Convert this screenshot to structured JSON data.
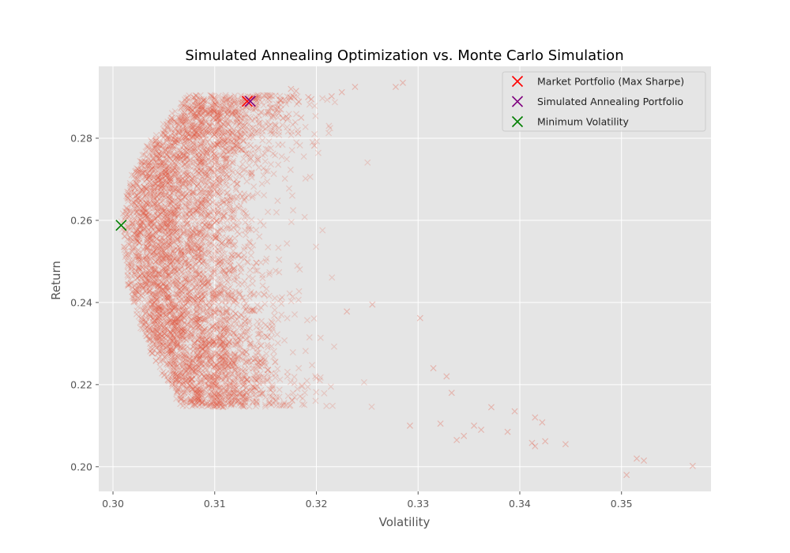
{
  "chart_data": {
    "type": "scatter",
    "title": "Simulated Annealing Optimization vs. Monte Carlo Simulation",
    "xlabel": "Volatility",
    "ylabel": "Return",
    "xlim": [
      0.2986,
      0.3588
    ],
    "ylim": [
      0.194,
      0.2975
    ],
    "xticks": [
      "0.30",
      "0.31",
      "0.32",
      "0.33",
      "0.34",
      "0.35"
    ],
    "yticks": [
      "0.20",
      "0.22",
      "0.24",
      "0.26",
      "0.28"
    ],
    "grid": true,
    "legend_position": "top-right",
    "colors": {
      "background": "#E5E5E5",
      "grid": "#FFFFFF",
      "simulation": "#E24A33",
      "market": "#FF0000",
      "annealing": "#800080",
      "min_vol": "#008000"
    },
    "special_points": [
      {
        "name": "Market Portfolio (Max Sharpe)",
        "x": 0.3132,
        "y": 0.289,
        "color": "#FF0000"
      },
      {
        "name": "Simulated Annealing Portfolio",
        "x": 0.3135,
        "y": 0.289,
        "color": "#800080"
      },
      {
        "name": "Minimum Volatility",
        "x": 0.3008,
        "y": 0.2588,
        "color": "#008000"
      }
    ],
    "simulation": {
      "frontier_min_volatility": 0.3008,
      "frontier_center_return": 0.2588,
      "outliers": [
        [
          0.357,
          0.2002
        ],
        [
          0.3522,
          0.2015
        ],
        [
          0.3515,
          0.202
        ],
        [
          0.3505,
          0.198
        ],
        [
          0.3445,
          0.2055
        ],
        [
          0.3425,
          0.2062
        ],
        [
          0.3415,
          0.205
        ],
        [
          0.3412,
          0.2058
        ],
        [
          0.3422,
          0.2108
        ],
        [
          0.3415,
          0.212
        ],
        [
          0.3395,
          0.2135
        ],
        [
          0.3388,
          0.2085
        ],
        [
          0.3372,
          0.2145
        ],
        [
          0.3362,
          0.209
        ],
        [
          0.3355,
          0.21
        ],
        [
          0.3345,
          0.2075
        ],
        [
          0.3338,
          0.2065
        ],
        [
          0.3328,
          0.222
        ],
        [
          0.3315,
          0.224
        ],
        [
          0.3302,
          0.2362
        ],
        [
          0.3285,
          0.2935
        ],
        [
          0.3278,
          0.2925
        ],
        [
          0.3238,
          0.2925
        ],
        [
          0.3225,
          0.2912
        ],
        [
          0.3215,
          0.2902
        ],
        [
          0.3195,
          0.2895
        ],
        [
          0.3192,
          0.29
        ],
        [
          0.318,
          0.2915
        ],
        [
          0.3175,
          0.292
        ],
        [
          0.3165,
          0.287
        ],
        [
          0.3198,
          0.2782
        ],
        [
          0.3182,
          0.2812
        ],
        [
          0.3185,
          0.285
        ],
        [
          0.3163,
          0.286
        ],
        [
          0.3178,
          0.29
        ],
        [
          0.3255,
          0.2395
        ],
        [
          0.323,
          0.2378
        ],
        [
          0.3292,
          0.21
        ],
        [
          0.3322,
          0.2105
        ],
        [
          0.3333,
          0.218
        ]
      ]
    }
  }
}
